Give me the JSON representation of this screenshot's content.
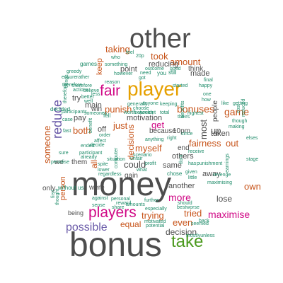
{
  "words": [
    {
      "text": "other",
      "color": "#4d4d4d"
    },
    {
      "text": "player",
      "color": "#e6a000"
    },
    {
      "text": "fair",
      "color": "#d00a86"
    },
    {
      "text": "money",
      "color": "#4d4d4d"
    },
    {
      "text": "bonus",
      "color": "#4d4d4d"
    },
    {
      "text": "take",
      "color": "#4c9a1f"
    },
    {
      "text": "players",
      "color": "#d00a86"
    },
    {
      "text": "possible",
      "color": "#6a5aa8"
    },
    {
      "text": "reduce",
      "color": "#6a5aa8"
    },
    {
      "text": "bonuses",
      "color": "#c7541a"
    },
    {
      "text": "game",
      "color": "#c7541a"
    },
    {
      "text": "taking",
      "color": "#c7541a"
    },
    {
      "text": "took",
      "color": "#c7541a"
    },
    {
      "text": "amount",
      "color": "#c7541a"
    },
    {
      "text": "both",
      "color": "#c7541a"
    },
    {
      "text": "just",
      "color": "#c7541a"
    },
    {
      "text": "get",
      "color": "#d00a86"
    },
    {
      "text": "myself",
      "color": "#c7541a"
    },
    {
      "text": "fairness",
      "color": "#c7541a"
    },
    {
      "text": "out",
      "color": "#c7541a"
    },
    {
      "text": "more",
      "color": "#d00a86"
    },
    {
      "text": "trying",
      "color": "#c7541a"
    },
    {
      "text": "tried",
      "color": "#c7541a"
    },
    {
      "text": "maximise",
      "color": "#d00a86"
    },
    {
      "text": "equal",
      "color": "#c7541a"
    },
    {
      "text": "could",
      "color": "#4d4d4d"
    },
    {
      "text": "even",
      "color": "#c7541a"
    },
    {
      "text": "own",
      "color": "#c7541a"
    },
    {
      "text": "someone",
      "color": "#c7541a"
    },
    {
      "text": "punish",
      "color": "#c7541a"
    },
    {
      "text": "decision",
      "color": "#4d4d4d"
    },
    {
      "text": "decisions",
      "color": "#c7541a"
    },
    {
      "text": "keep",
      "color": "#c7541a"
    },
    {
      "text": "most",
      "color": "#4d4d4d"
    },
    {
      "text": "person",
      "color": "#c7541a"
    },
    {
      "text": "up",
      "color": "#4d4d4d"
    },
    {
      "text": "lose",
      "color": "#4d4d4d"
    },
    {
      "text": "away",
      "color": "#4d4d4d"
    },
    {
      "text": "another",
      "color": "#4d4d4d"
    },
    {
      "text": "others",
      "color": "#4d4d4d"
    },
    {
      "text": "same",
      "color": "#4d4d4d"
    },
    {
      "text": "end",
      "color": "#4d4d4d"
    },
    {
      "text": "taken",
      "color": "#4d4d4d"
    },
    {
      "text": "all",
      "color": "#c7541a"
    },
    {
      "text": "off",
      "color": "#4d4d4d"
    },
    {
      "text": "pay",
      "color": "#4d4d4d"
    },
    {
      "text": "try",
      "color": "#4d4d4d"
    },
    {
      "text": "main",
      "color": "#4d4d4d"
    },
    {
      "text": "win",
      "color": "#4d4d4d"
    },
    {
      "text": "motivation",
      "color": "#4d4d4d"
    },
    {
      "text": "point",
      "color": "#4d4d4d"
    },
    {
      "text": "reducing",
      "color": "#4d4d4d"
    },
    {
      "text": "made",
      "color": "#4d4d4d"
    },
    {
      "text": "think",
      "color": "#4d4d4d"
    },
    {
      "text": "people",
      "color": "#4d4d4d"
    },
    {
      "text": "because",
      "color": "#4d4d4d"
    },
    {
      "text": "10pm",
      "color": "#4d4d4d"
    },
    {
      "text": "gain",
      "color": "#4d4d4d"
    },
    {
      "text": "were",
      "color": "#4d4d4d"
    },
    {
      "text": "only",
      "color": "#4d4d4d"
    },
    {
      "text": "them",
      "color": "#4d4d4d"
    },
    {
      "text": "we",
      "color": "#4d4d4d"
    },
    {
      "text": "being",
      "color": "#4d4d4d"
    },
    {
      "text": "without",
      "color": "#1f8c6a"
    },
    {
      "text": "us",
      "color": "#1f8c6a"
    },
    {
      "text": "games",
      "color": "#1f8c6a"
    },
    {
      "text": "something",
      "color": "#1f8c6a"
    },
    {
      "text": "who",
      "color": "#1f8c6a"
    },
    {
      "text": "feel",
      "color": "#1f8c6a"
    },
    {
      "text": "20p",
      "color": "#1f8c6a"
    },
    {
      "text": "outcome",
      "color": "#1f8c6a"
    },
    {
      "text": "good",
      "color": "#1f8c6a"
    },
    {
      "text": "need",
      "color": "#1f8c6a"
    },
    {
      "text": "you",
      "color": "#1f8c6a"
    },
    {
      "text": "still",
      "color": "#1f8c6a"
    },
    {
      "text": "final",
      "color": "#1f8c6a"
    },
    {
      "text": "happy",
      "color": "#1f8c6a"
    },
    {
      "text": "greedy",
      "color": "#1f8c6a"
    },
    {
      "text": "ensure",
      "color": "#1f8c6a"
    },
    {
      "text": "rather",
      "color": "#1f8c6a"
    },
    {
      "text": "reason",
      "color": "#1f8c6a"
    },
    {
      "text": "however",
      "color": "#1f8c6a"
    },
    {
      "text": "got",
      "color": "#1f8c6a"
    },
    {
      "text": "started",
      "color": "#1f8c6a"
    },
    {
      "text": "keeping",
      "color": "#1f8c6a"
    },
    {
      "text": "choose",
      "color": "#1f8c6a"
    },
    {
      "text": "between",
      "color": "#1f8c6a"
    },
    {
      "text": "generally",
      "color": "#1f8c6a"
    },
    {
      "text": "total",
      "color": "#1f8c6a"
    },
    {
      "text": "anyone",
      "color": "#1f8c6a"
    },
    {
      "text": "therefore",
      "color": "#1f8c6a"
    },
    {
      "text": "believe",
      "color": "#1f8c6a"
    },
    {
      "text": "better",
      "color": "#1f8c6a"
    },
    {
      "text": "well",
      "color": "#1f8c6a"
    },
    {
      "text": "someones",
      "color": "#1f8c6a"
    },
    {
      "text": "decided",
      "color": "#1f8c6a"
    },
    {
      "text": "case",
      "color": "#1f8c6a"
    },
    {
      "text": "participants",
      "color": "#1f8c6a"
    },
    {
      "text": "fell",
      "color": "#1f8c6a"
    },
    {
      "text": "worth",
      "color": "#1f8c6a"
    },
    {
      "text": "wouldnt",
      "color": "#1f8c6a"
    },
    {
      "text": "highest",
      "color": "#1f8c6a"
    },
    {
      "text": "theirs",
      "color": "#1f8c6a"
    },
    {
      "text": "though",
      "color": "#1f8c6a"
    },
    {
      "text": "making",
      "color": "#1f8c6a"
    },
    {
      "text": "like",
      "color": "#1f8c6a"
    },
    {
      "text": "getting",
      "color": "#1f8c6a"
    },
    {
      "text": "order",
      "color": "#1f8c6a"
    },
    {
      "text": "anything",
      "color": "#1f8c6a"
    },
    {
      "text": "share",
      "color": "#1f8c6a"
    },
    {
      "text": "amounts",
      "color": "#1f8c6a"
    },
    {
      "text": "especially",
      "color": "#1f8c6a"
    },
    {
      "text": "motivated",
      "color": "#1f8c6a"
    },
    {
      "text": "potential",
      "color": "#1f8c6a"
    },
    {
      "text": "seemed",
      "color": "#1f8c6a"
    },
    {
      "text": "further",
      "color": "#1f8c6a"
    },
    {
      "text": "bestworse",
      "color": "#1f8c6a"
    },
    {
      "text": "mostlyunless",
      "color": "#1f8c6a"
    },
    {
      "text": "revenge",
      "color": "#1f8c6a"
    },
    {
      "text": "maximising",
      "color": "#1f8c6a"
    },
    {
      "text": "punishment",
      "color": "#1f8c6a"
    },
    {
      "text": "has",
      "color": "#1f8c6a"
    },
    {
      "text": "chose",
      "color": "#1f8c6a"
    },
    {
      "text": "given",
      "color": "#1f8c6a"
    },
    {
      "text": "little",
      "color": "#1f8c6a"
    },
    {
      "text": "sense",
      "color": "#1f8c6a"
    },
    {
      "text": "against",
      "color": "#1f8c6a"
    },
    {
      "text": "personal",
      "color": "#1f8c6a"
    },
    {
      "text": "reward",
      "color": "#1f8c6a"
    },
    {
      "text": "should",
      "color": "#1f8c6a"
    },
    {
      "text": "back",
      "color": "#1f8c6a"
    },
    {
      "text": "stage",
      "color": "#1f8c6a"
    },
    {
      "text": "elses",
      "color": "#1f8c6a"
    },
    {
      "text": "spite",
      "color": "#1f8c6a"
    },
    {
      "text": "lower",
      "color": "#1f8c6a"
    },
    {
      "text": "regardless",
      "color": "#1f8c6a"
    },
    {
      "text": "participant",
      "color": "#1f8c6a"
    },
    {
      "text": "sure",
      "color": "#1f8c6a"
    },
    {
      "text": "penalise",
      "color": "#1f8c6a"
    },
    {
      "text": "first",
      "color": "#1f8c6a"
    },
    {
      "text": "thought",
      "color": "#1f8c6a"
    },
    {
      "text": "therefore",
      "color": "#1f8c6a"
    },
    {
      "text": "affect",
      "color": "#1f8c6a"
    },
    {
      "text": "ended",
      "color": "#1f8c6a"
    },
    {
      "text": "already",
      "color": "#1f8c6a"
    },
    {
      "text": "computer",
      "color": "#1f8c6a"
    },
    {
      "text": "scenario",
      "color": "#1f8c6a"
    },
    {
      "text": "unfair",
      "color": "#1f8c6a"
    },
    {
      "text": "profit",
      "color": "#1f8c6a"
    },
    {
      "text": "situation",
      "color": "#1f8c6a"
    },
    {
      "text": "right",
      "color": "#1f8c6a"
    },
    {
      "text": "since",
      "color": "#1f8c6a"
    },
    {
      "text": "decide",
      "color": "#1f8c6a"
    },
    {
      "text": "reduced",
      "color": "#1f8c6a"
    },
    {
      "text": "cost",
      "color": "#1f8c6a"
    },
    {
      "text": "earnings",
      "color": "#1f8c6a"
    },
    {
      "text": "one",
      "color": "#1f8c6a"
    },
    {
      "text": "how",
      "color": "#1f8c6a"
    },
    {
      "text": "things",
      "color": "#1f8c6a"
    },
    {
      "text": "actions",
      "color": "#1f8c6a"
    },
    {
      "text": "less",
      "color": "#1f8c6a"
    },
    {
      "text": "fast",
      "color": "#1f8c6a"
    },
    {
      "text": "benefit",
      "color": "#1f8c6a"
    },
    {
      "text": "receive",
      "color": "#1f8c6a"
    },
    {
      "text": "benefits",
      "color": "#1f8c6a"
    },
    {
      "text": "dont",
      "color": "#1f8c6a"
    },
    {
      "text": "what",
      "color": "#1f8c6a"
    },
    {
      "text": "therefore",
      "color": "#1f8c6a"
    }
  ]
}
